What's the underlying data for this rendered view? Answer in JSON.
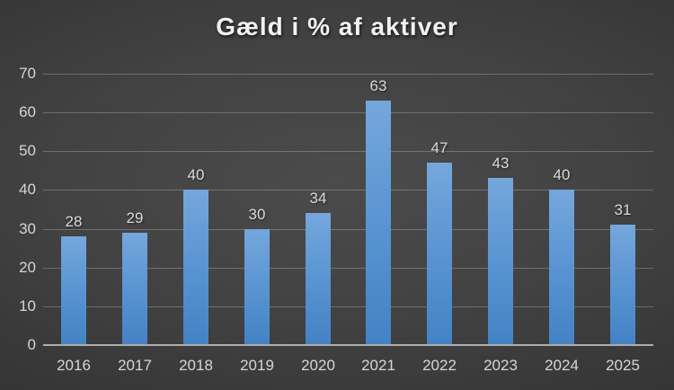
{
  "chart_data": {
    "type": "bar",
    "title": "Gæld i % af aktiver",
    "categories": [
      "2016",
      "2017",
      "2018",
      "2019",
      "2020",
      "2021",
      "2022",
      "2023",
      "2024",
      "2025"
    ],
    "values": [
      28,
      29,
      40,
      30,
      34,
      63,
      47,
      43,
      40,
      31
    ],
    "xlabel": "",
    "ylabel": "",
    "ylim": [
      0,
      70
    ],
    "yticks": [
      0,
      10,
      20,
      30,
      40,
      50,
      60,
      70
    ],
    "grid": true,
    "legend": false,
    "data_labels": true,
    "colors": {
      "bar_top": "#75a7dc",
      "bar_bottom": "#4382c5",
      "grid_line": "rgba(255,255,255,0.24)",
      "axis_line": "#adadad",
      "tick_label": "#d6d6d6",
      "data_label": "#d9d9d9",
      "title": "#f1f1f1",
      "background_center": "#4b4b4b",
      "background_edge": "#252525"
    }
  }
}
